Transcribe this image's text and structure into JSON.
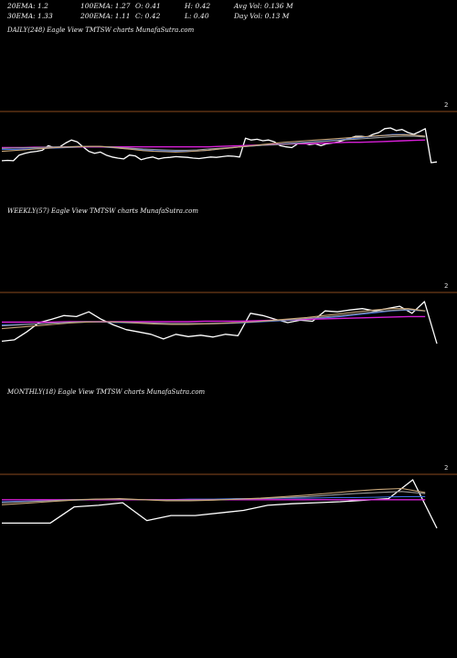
{
  "header": {
    "ema20": "20EMA: 1.2",
    "ema100": "100EMA: 1.27",
    "open": "O: 0.41",
    "high": "H: 0.42",
    "avg_vol": "Avg Vol: 0.136  M",
    "ema30": "30EMA: 1.33",
    "ema200": "200EMA: 1.11",
    "close": "C: 0.42",
    "low": "L: 0.40",
    "day_vol": "Day Vol: 0.13  M"
  },
  "colors": {
    "background": "#000000",
    "separator": "#8a4a1e",
    "price": "#ffffff",
    "ema_blue": "#3f6fe0",
    "ema_magenta": "#d61fd6",
    "ema_gray": "#9a9a9a",
    "ema_tan": "#c9a77a"
  },
  "chart_data": [
    {
      "type": "line",
      "title": "DAILY(248) Eagle   View  TMTSW charts MunafaSutra.com",
      "tick_label": "2",
      "series": [
        {
          "role": "price",
          "values": [
            0.35,
            0.36,
            0.35,
            0.5,
            0.55,
            0.58,
            0.6,
            0.63,
            0.75,
            0.7,
            0.72,
            0.82,
            0.9,
            0.85,
            0.72,
            0.6,
            0.55,
            0.58,
            0.5,
            0.45,
            0.42,
            0.4,
            0.5,
            0.48,
            0.38,
            0.42,
            0.45,
            0.4,
            0.43,
            0.44,
            0.46,
            0.45,
            0.44,
            0.42,
            0.41,
            0.43,
            0.45,
            0.44,
            0.46,
            0.48,
            0.47,
            0.45,
            0.95,
            0.9,
            0.92,
            0.88,
            0.9,
            0.85,
            0.75,
            0.72,
            0.7,
            0.8,
            0.82,
            0.78,
            0.8,
            0.75,
            0.8,
            0.82,
            0.85,
            0.9,
            0.95,
            1.0,
            1.0,
            0.98,
            1.05,
            1.1,
            1.2,
            1.22,
            1.15,
            1.18,
            1.1,
            1.05,
            1.12,
            1.2,
            0.3,
            0.32
          ]
        },
        {
          "role": "ema",
          "color": "ema_blue",
          "values": [
            0.65,
            0.65,
            0.66,
            0.67,
            0.68,
            0.69,
            0.7,
            0.71,
            0.72,
            0.72,
            0.7,
            0.68,
            0.66,
            0.64,
            0.62,
            0.61,
            0.6,
            0.6,
            0.61,
            0.63,
            0.66,
            0.69,
            0.72,
            0.74,
            0.76,
            0.78,
            0.8,
            0.82,
            0.84,
            0.86,
            0.88,
            0.9,
            0.93,
            0.96,
            0.99,
            1.02,
            1.05,
            1.05,
            1.03,
            1.0
          ]
        },
        {
          "role": "ema",
          "color": "ema_magenta",
          "values": [
            0.7,
            0.7,
            0.7,
            0.71,
            0.71,
            0.71,
            0.72,
            0.72,
            0.72,
            0.72,
            0.72,
            0.72,
            0.72,
            0.72,
            0.72,
            0.72,
            0.72,
            0.72,
            0.72,
            0.72,
            0.73,
            0.74,
            0.75,
            0.76,
            0.77,
            0.78,
            0.79,
            0.8,
            0.8,
            0.81,
            0.82,
            0.83,
            0.84,
            0.84,
            0.85,
            0.86,
            0.87,
            0.88,
            0.89,
            0.9
          ]
        },
        {
          "role": "ema",
          "color": "ema_gray",
          "values": [
            0.68,
            0.69,
            0.7,
            0.7,
            0.71,
            0.72,
            0.72,
            0.73,
            0.73,
            0.73,
            0.72,
            0.7,
            0.68,
            0.66,
            0.65,
            0.64,
            0.63,
            0.63,
            0.64,
            0.66,
            0.68,
            0.7,
            0.72,
            0.74,
            0.76,
            0.77,
            0.79,
            0.81,
            0.83,
            0.85,
            0.87,
            0.89,
            0.91,
            0.93,
            0.95,
            0.97,
            0.99,
            1.0,
            1.0,
            0.98
          ]
        },
        {
          "role": "ema",
          "color": "ema_tan",
          "values": [
            0.6,
            0.62,
            0.64,
            0.66,
            0.68,
            0.7,
            0.71,
            0.72,
            0.73,
            0.73,
            0.71,
            0.68,
            0.65,
            0.62,
            0.6,
            0.59,
            0.58,
            0.59,
            0.61,
            0.63,
            0.66,
            0.69,
            0.72,
            0.75,
            0.78,
            0.81,
            0.84,
            0.86,
            0.88,
            0.9,
            0.92,
            0.94,
            0.96,
            0.98,
            1.0,
            1.02,
            1.03,
            1.04,
            1.03,
            1.0
          ]
        }
      ]
    },
    {
      "type": "line",
      "title": "WEEKLY(57) Eagle   View  TMTSW charts MunafaSutra.com",
      "tick_label": "2",
      "series": [
        {
          "role": "price",
          "values": [
            0.35,
            0.38,
            0.55,
            0.75,
            0.82,
            0.9,
            0.88,
            0.98,
            0.82,
            0.7,
            0.6,
            0.55,
            0.5,
            0.4,
            0.5,
            0.45,
            0.48,
            0.44,
            0.5,
            0.47,
            0.95,
            0.9,
            0.82,
            0.75,
            0.8,
            0.78,
            1.0,
            0.98,
            1.02,
            1.05,
            1.0,
            1.05,
            1.1,
            0.95,
            1.2,
            0.3
          ]
        },
        {
          "role": "ema",
          "color": "ema_blue",
          "values": [
            0.7,
            0.71,
            0.72,
            0.74,
            0.75,
            0.76,
            0.76,
            0.75,
            0.74,
            0.73,
            0.72,
            0.72,
            0.72,
            0.73,
            0.74,
            0.76,
            0.78,
            0.8,
            0.82,
            0.85,
            0.88,
            0.92,
            0.96,
            1.0,
            1.02,
            1.0
          ]
        },
        {
          "role": "ema",
          "color": "ema_magenta",
          "values": [
            0.76,
            0.76,
            0.76,
            0.76,
            0.77,
            0.77,
            0.77,
            0.77,
            0.77,
            0.77,
            0.77,
            0.77,
            0.78,
            0.78,
            0.78,
            0.79,
            0.8,
            0.81,
            0.82,
            0.83,
            0.84,
            0.85,
            0.86,
            0.87,
            0.88,
            0.88
          ]
        },
        {
          "role": "ema",
          "color": "ema_gray",
          "values": [
            0.68,
            0.7,
            0.72,
            0.74,
            0.76,
            0.77,
            0.77,
            0.76,
            0.75,
            0.74,
            0.73,
            0.73,
            0.73,
            0.74,
            0.75,
            0.77,
            0.79,
            0.81,
            0.84,
            0.87,
            0.9,
            0.94,
            0.98,
            1.01,
            1.03,
            1.0
          ]
        },
        {
          "role": "ema",
          "color": "ema_tan",
          "values": [
            0.62,
            0.65,
            0.68,
            0.71,
            0.74,
            0.76,
            0.77,
            0.76,
            0.74,
            0.72,
            0.71,
            0.71,
            0.72,
            0.73,
            0.75,
            0.77,
            0.8,
            0.83,
            0.86,
            0.9,
            0.94,
            0.98,
            1.02,
            1.05,
            1.05,
            1.0
          ]
        }
      ]
    },
    {
      "type": "line",
      "title": "MONTHLY(18) Eagle   View  TMTSW charts MunafaSutra.com",
      "tick_label": "2",
      "series": [
        {
          "role": "price",
          "values": [
            0.4,
            0.4,
            0.4,
            0.72,
            0.75,
            0.8,
            0.45,
            0.55,
            0.55,
            0.6,
            0.65,
            0.75,
            0.78,
            0.8,
            0.82,
            0.85,
            0.88,
            1.25,
            0.3
          ]
        },
        {
          "role": "ema",
          "color": "ema_blue",
          "values": [
            0.82,
            0.83,
            0.84,
            0.85,
            0.86,
            0.86,
            0.86,
            0.86,
            0.87,
            0.87,
            0.88,
            0.88,
            0.89,
            0.89,
            0.9,
            0.9,
            0.91,
            0.92,
            0.92
          ]
        },
        {
          "role": "ema",
          "color": "ema_magenta",
          "values": [
            0.86,
            0.86,
            0.86,
            0.86,
            0.86,
            0.86,
            0.86,
            0.86,
            0.86,
            0.86,
            0.86,
            0.86,
            0.86,
            0.86,
            0.86,
            0.86,
            0.86,
            0.86,
            0.86
          ]
        },
        {
          "role": "ema",
          "color": "ema_gray",
          "values": [
            0.8,
            0.82,
            0.84,
            0.86,
            0.87,
            0.87,
            0.86,
            0.85,
            0.85,
            0.86,
            0.87,
            0.88,
            0.9,
            0.92,
            0.95,
            0.98,
            1.0,
            1.02,
            0.98
          ]
        },
        {
          "role": "ema",
          "color": "ema_tan",
          "values": [
            0.76,
            0.79,
            0.82,
            0.85,
            0.87,
            0.88,
            0.86,
            0.84,
            0.84,
            0.85,
            0.87,
            0.89,
            0.92,
            0.95,
            0.99,
            1.03,
            1.06,
            1.08,
            1.0
          ]
        }
      ]
    }
  ]
}
